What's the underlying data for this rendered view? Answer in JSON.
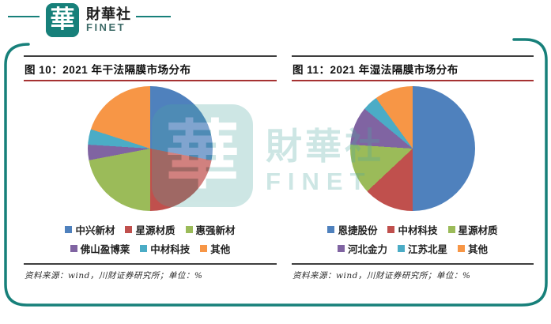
{
  "brand": {
    "seal_char": "華",
    "name": "財華社",
    "name_en": "FINET"
  },
  "watermark": {
    "seal_char": "華",
    "name": "財華社",
    "name_en": "FINET"
  },
  "colors": {
    "brand_teal": "#17807A",
    "panel_rule_dark": "#3F3F3F",
    "title_rule_red": "#A63232",
    "palette": [
      "#4F81BD",
      "#C0504D",
      "#9BBB59",
      "#8064A2",
      "#4BACC6",
      "#F79646"
    ]
  },
  "panels": [
    {
      "title": "图 10：2021 年干法隔膜市场分布",
      "source": "资料来源：wind，川财证券研究所；单位：%"
    },
    {
      "title": "图 11：2021 年湿法隔膜市场分布",
      "source": "资料来源：wind，川财证券研究所；单位：%"
    }
  ],
  "chart_data": [
    {
      "type": "pie",
      "title": "2021 年干法隔膜市场分布",
      "unit": "%",
      "start_angle_deg": 0,
      "clockwise": true,
      "legend_position": "bottom",
      "labels": [
        "中兴新材",
        "星源材质",
        "惠强新材",
        "佛山盈博莱",
        "中材科技",
        "其他"
      ],
      "values": [
        28,
        22,
        22,
        4,
        4,
        20
      ],
      "colors": [
        "#4F81BD",
        "#C0504D",
        "#9BBB59",
        "#8064A2",
        "#4BACC6",
        "#F79646"
      ]
    },
    {
      "type": "pie",
      "title": "2021 年湿法隔膜市场分布",
      "unit": "%",
      "start_angle_deg": 0,
      "clockwise": true,
      "legend_position": "bottom",
      "labels": [
        "恩捷股份",
        "中材科技",
        "星源材质",
        "河北金力",
        "江苏北星",
        "其他"
      ],
      "values": [
        50,
        13,
        13,
        10,
        4,
        10
      ],
      "colors": [
        "#4F81BD",
        "#C0504D",
        "#9BBB59",
        "#8064A2",
        "#4BACC6",
        "#F79646"
      ]
    }
  ]
}
